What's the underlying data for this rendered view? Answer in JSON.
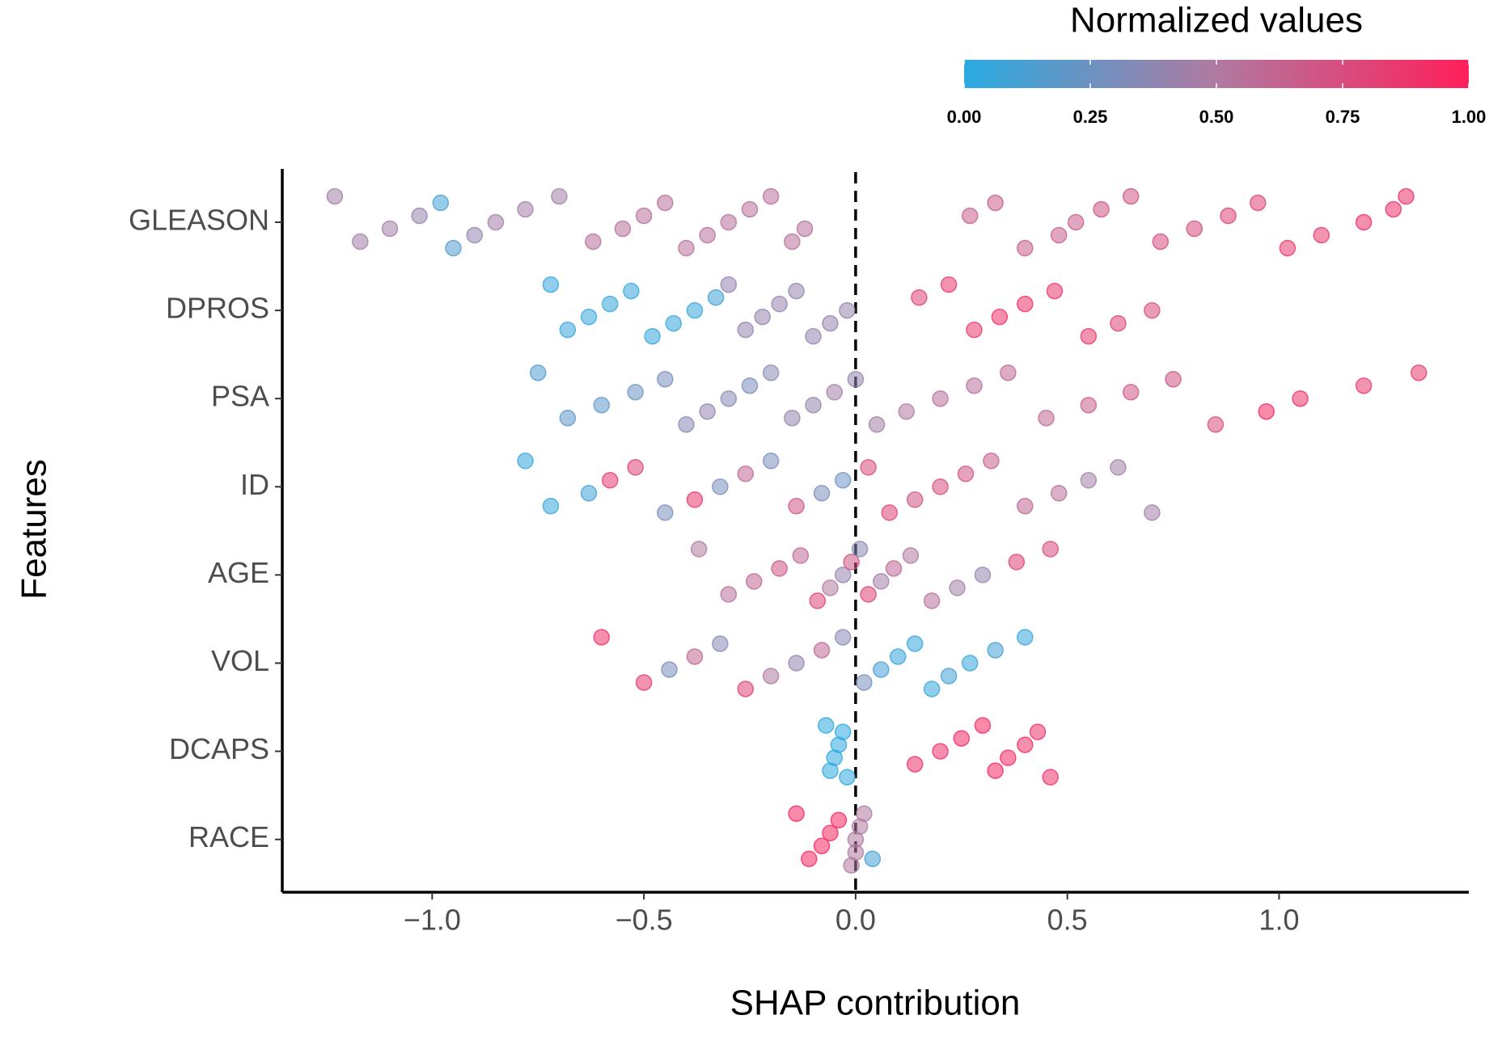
{
  "chart_data": {
    "type": "beeswarm",
    "xlabel": "SHAP contribution",
    "ylabel": "Features",
    "categories": [
      "GLEASON",
      "DPROS",
      "PSA",
      "ID",
      "AGE",
      "VOL",
      "DCAPS",
      "RACE"
    ],
    "shap": [
      [
        -1.23,
        -1.17,
        -1.1,
        -1.03,
        -0.98,
        -0.95,
        -0.9,
        -0.85,
        -0.78,
        -0.7,
        -0.62,
        -0.55,
        -0.5,
        -0.45,
        -0.4,
        -0.35,
        -0.3,
        -0.25,
        -0.2,
        -0.15,
        -0.12,
        0.27,
        0.33,
        0.4,
        0.48,
        0.52,
        0.58,
        0.65,
        0.72,
        0.8,
        0.88,
        0.95,
        1.02,
        1.1,
        1.2,
        1.27,
        1.3
      ],
      [
        -0.72,
        -0.68,
        -0.63,
        -0.58,
        -0.53,
        -0.48,
        -0.43,
        -0.38,
        -0.33,
        -0.3,
        -0.26,
        -0.22,
        -0.18,
        -0.14,
        -0.1,
        -0.06,
        -0.02,
        0.15,
        0.22,
        0.28,
        0.34,
        0.4,
        0.47,
        0.55,
        0.62,
        0.7
      ],
      [
        -0.75,
        -0.68,
        -0.6,
        -0.52,
        -0.45,
        -0.4,
        -0.35,
        -0.3,
        -0.25,
        -0.2,
        -0.15,
        -0.1,
        -0.05,
        0.0,
        0.05,
        0.12,
        0.2,
        0.28,
        0.36,
        0.45,
        0.55,
        0.65,
        0.75,
        0.85,
        0.97,
        1.05,
        1.2,
        1.33
      ],
      [
        -0.78,
        -0.72,
        -0.63,
        -0.58,
        -0.52,
        -0.45,
        -0.38,
        -0.32,
        -0.26,
        -0.2,
        -0.14,
        -0.08,
        -0.03,
        0.03,
        0.08,
        0.14,
        0.2,
        0.26,
        0.32,
        0.4,
        0.48,
        0.55,
        0.62,
        0.7
      ],
      [
        -0.37,
        -0.3,
        -0.24,
        -0.18,
        -0.13,
        -0.09,
        -0.06,
        -0.03,
        -0.01,
        0.01,
        0.03,
        0.06,
        0.09,
        0.13,
        0.18,
        0.24,
        0.3,
        0.38,
        0.46
      ],
      [
        -0.6,
        -0.5,
        -0.44,
        -0.38,
        -0.32,
        -0.26,
        -0.2,
        -0.14,
        -0.08,
        -0.03,
        0.02,
        0.06,
        0.1,
        0.14,
        0.18,
        0.22,
        0.27,
        0.33,
        0.4
      ],
      [
        -0.07,
        -0.06,
        -0.05,
        -0.04,
        -0.03,
        -0.02,
        0.14,
        0.2,
        0.25,
        0.3,
        0.33,
        0.36,
        0.4,
        0.43,
        0.46
      ],
      [
        -0.14,
        -0.11,
        -0.08,
        -0.06,
        -0.04,
        -0.01,
        0.0,
        0.0,
        0.01,
        0.02,
        0.04
      ]
    ],
    "normalized": [
      [
        0.45,
        0.45,
        0.45,
        0.4,
        0.1,
        0.15,
        0.4,
        0.45,
        0.45,
        0.45,
        0.55,
        0.55,
        0.55,
        0.55,
        0.55,
        0.55,
        0.55,
        0.55,
        0.55,
        0.55,
        0.55,
        0.65,
        0.65,
        0.65,
        0.65,
        0.65,
        0.7,
        0.7,
        0.75,
        0.75,
        0.8,
        0.8,
        0.85,
        0.85,
        0.9,
        0.9,
        0.9
      ],
      [
        0.05,
        0.05,
        0.05,
        0.05,
        0.05,
        0.05,
        0.05,
        0.05,
        0.1,
        0.4,
        0.4,
        0.4,
        0.4,
        0.4,
        0.4,
        0.4,
        0.4,
        0.8,
        0.85,
        0.85,
        0.9,
        0.9,
        0.85,
        0.85,
        0.8,
        0.75
      ],
      [
        0.15,
        0.2,
        0.2,
        0.25,
        0.3,
        0.35,
        0.4,
        0.35,
        0.3,
        0.35,
        0.4,
        0.4,
        0.45,
        0.4,
        0.45,
        0.5,
        0.55,
        0.55,
        0.6,
        0.6,
        0.65,
        0.7,
        0.7,
        0.75,
        0.95,
        0.9,
        0.85,
        0.85
      ],
      [
        0.05,
        0.05,
        0.1,
        0.85,
        0.8,
        0.3,
        0.85,
        0.3,
        0.6,
        0.3,
        0.7,
        0.3,
        0.25,
        0.75,
        0.8,
        0.7,
        0.75,
        0.7,
        0.65,
        0.6,
        0.55,
        0.45,
        0.45,
        0.45
      ],
      [
        0.5,
        0.55,
        0.6,
        0.7,
        0.6,
        0.8,
        0.5,
        0.4,
        0.7,
        0.35,
        0.8,
        0.45,
        0.6,
        0.5,
        0.55,
        0.45,
        0.4,
        0.8,
        0.75
      ],
      [
        0.9,
        0.85,
        0.3,
        0.6,
        0.35,
        0.8,
        0.5,
        0.4,
        0.6,
        0.35,
        0.3,
        0.1,
        0.05,
        0.05,
        0.05,
        0.1,
        0.05,
        0.1,
        0.05
      ],
      [
        0.02,
        0.02,
        0.02,
        0.02,
        0.02,
        0.02,
        0.9,
        0.9,
        0.95,
        0.95,
        0.95,
        0.95,
        0.9,
        0.9,
        0.9
      ],
      [
        0.95,
        0.95,
        0.95,
        0.95,
        0.95,
        0.5,
        0.5,
        0.5,
        0.5,
        0.5,
        0.1
      ]
    ],
    "xlim": [
      -1.354,
      1.448
    ],
    "xticks": [
      {
        "value": -1,
        "label": "−1.0"
      },
      {
        "value": -0.5,
        "label": "−0.5"
      },
      {
        "value": 0,
        "label": "0.0"
      },
      {
        "value": 0.5,
        "label": "0.5"
      },
      {
        "value": 1,
        "label": "1.0"
      }
    ],
    "colorbar": {
      "title": "Normalized values",
      "lim": [
        0,
        1
      ],
      "ticks": [
        {
          "value": 0,
          "label": "0.00"
        },
        {
          "value": 0.25,
          "label": "0.25"
        },
        {
          "value": 0.5,
          "label": "0.50"
        },
        {
          "value": 0.75,
          "label": "0.75"
        },
        {
          "value": 1,
          "label": "1.00"
        }
      ],
      "colors": [
        "#29abe2",
        "#b07aa1",
        "#ff1f5b"
      ]
    }
  }
}
